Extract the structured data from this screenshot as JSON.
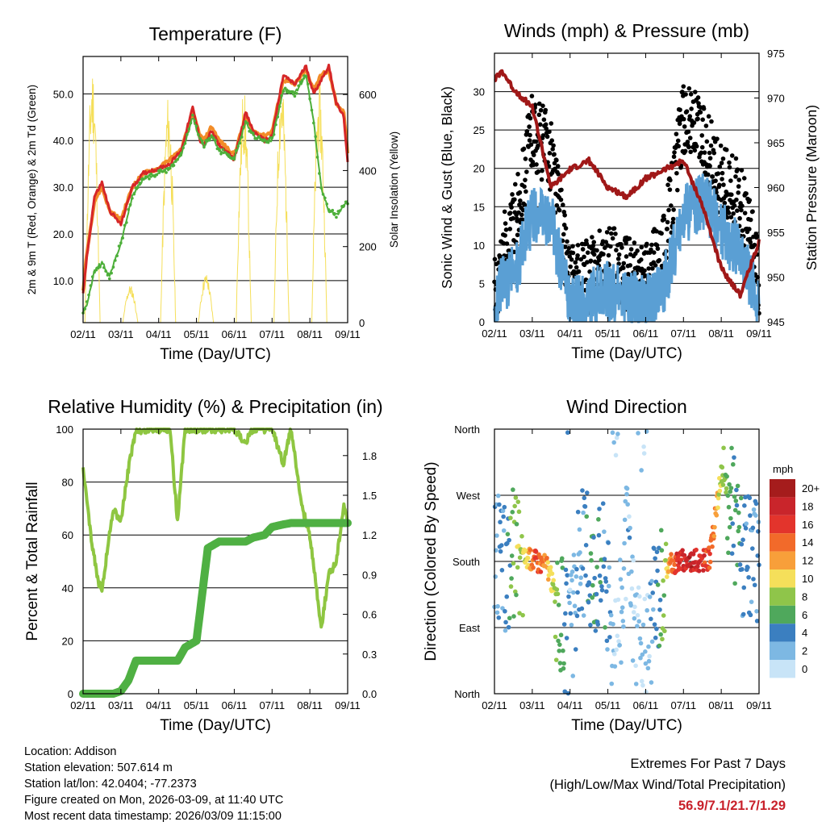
{
  "dates": [
    "02/11",
    "03/11",
    "04/11",
    "05/11",
    "06/11",
    "07/11",
    "08/11",
    "09/11"
  ],
  "xlabel": "Time (Day/UTC)",
  "colors": {
    "red": "#d62728",
    "orange": "#f28c28",
    "green": "#4daf3a",
    "yellow": "#f5df5a",
    "black": "#000000",
    "blue": "#5a9fd4",
    "maroon": "#a01818",
    "lightgreen": "#8ec641",
    "rain": "#4fb043"
  },
  "chart_data": [
    {
      "type": "line",
      "title": "Temperature (F)",
      "ylabel": "2m & 9m T (Red, Orange) & 2m Td (Green)",
      "y2label": "Solar Insolation (Yellow)",
      "ylim": [
        1,
        58
      ],
      "yticks": [
        "10.0",
        "20.0",
        "30.0",
        "40.0",
        "50.0"
      ],
      "y2lim": [
        0,
        700
      ],
      "y2ticks": [
        "0",
        "200",
        "400",
        "600"
      ],
      "x": [
        0,
        0.1,
        0.3,
        0.5,
        0.7,
        1.0,
        1.3,
        1.6,
        2.0,
        2.3,
        2.6,
        2.9,
        3.1,
        3.2,
        3.4,
        3.6,
        4.0,
        4.3,
        4.5,
        4.8,
        5.0,
        5.3,
        5.6,
        5.9,
        6.1,
        6.3,
        6.5,
        6.7,
        6.9,
        7.0
      ],
      "series": [
        {
          "name": "2m T",
          "values": [
            7,
            15,
            28,
            31,
            25,
            22,
            30,
            33,
            34,
            35,
            38,
            47,
            40,
            39,
            42,
            39,
            36,
            46,
            42,
            40,
            41,
            54,
            52,
            56,
            50,
            53,
            56,
            48,
            45,
            35
          ]
        },
        {
          "name": "9m T",
          "values": [
            8,
            16,
            27,
            30,
            25,
            23,
            30,
            33,
            34,
            36,
            38,
            46,
            41,
            40,
            43,
            40,
            37,
            45,
            42,
            41,
            42,
            53,
            52,
            55,
            51,
            54,
            55,
            48,
            46,
            37
          ]
        },
        {
          "name": "2m Td",
          "values": [
            3,
            5,
            12,
            14,
            11,
            18,
            28,
            32,
            33,
            34,
            37,
            45,
            40,
            39,
            41,
            38,
            36,
            44,
            41,
            40,
            40,
            51,
            50,
            54,
            44,
            30,
            25,
            24,
            26,
            27
          ]
        }
      ],
      "insolation": {
        "name": "Solar Insolation",
        "day_peaks": [
          680,
          100,
          600,
          130,
          620,
          650,
          640,
          180
        ]
      }
    },
    {
      "type": "scatter",
      "title": "Winds (mph) & Pressure (mb)",
      "ylabel": "Sonic Wind & Gust (Blue, Black)",
      "y2label": "Station Pressure (Maroon)",
      "ylim": [
        0,
        35
      ],
      "yticks": [
        "0",
        "5",
        "10",
        "15",
        "20",
        "25",
        "30"
      ],
      "y2lim": [
        945,
        975
      ],
      "y2ticks": [
        "945",
        "950",
        "955",
        "960",
        "965",
        "970",
        "975"
      ],
      "x": [
        0,
        0.2,
        0.5,
        1.0,
        1.5,
        2.0,
        2.5,
        3.0,
        3.5,
        4.0,
        4.5,
        5.0,
        5.5,
        6.0,
        6.5,
        7.0
      ],
      "series": [
        {
          "name": "Sonic Wind",
          "values": [
            2,
            5,
            6,
            14,
            13,
            2,
            3,
            4,
            3,
            2,
            5,
            14,
            16,
            12,
            9,
            3
          ]
        },
        {
          "name": "Gust",
          "values": [
            4,
            9,
            12,
            25,
            22,
            5,
            6,
            8,
            6,
            5,
            10,
            27,
            24,
            18,
            16,
            6
          ]
        },
        {
          "name": "Station Pressure",
          "values": [
            972,
            973,
            971,
            969,
            960,
            962,
            963,
            960,
            959,
            961,
            962,
            963,
            958,
            951,
            948,
            954
          ]
        }
      ]
    },
    {
      "type": "line",
      "title": "Relative Humidity (%) & Precipitation (in)",
      "ylabel": "Percent & Total Rainfall",
      "ylim": [
        0,
        100
      ],
      "yticks": [
        "0",
        "20",
        "40",
        "60",
        "80",
        "100"
      ],
      "y2lim": [
        0,
        2.0
      ],
      "y2ticks": [
        "0.0",
        "0.3",
        "0.6",
        "0.9",
        "1.2",
        "1.5",
        "1.8"
      ],
      "x": [
        0,
        0.2,
        0.4,
        0.5,
        0.8,
        1.0,
        1.2,
        1.4,
        1.6,
        1.8,
        2.0,
        2.3,
        2.5,
        2.7,
        3.0,
        3.3,
        3.6,
        4.0,
        4.3,
        4.5,
        4.8,
        5.0,
        5.3,
        5.5,
        5.8,
        6.0,
        6.3,
        6.5,
        6.7,
        6.9,
        7.0
      ],
      "series": [
        {
          "name": "Relative Humidity",
          "values": [
            85,
            60,
            42,
            40,
            70,
            65,
            85,
            100,
            99,
            100,
            100,
            100,
            65,
            100,
            100,
            100,
            100,
            100,
            95,
            100,
            100,
            100,
            87,
            100,
            70,
            60,
            25,
            45,
            50,
            72,
            65
          ]
        },
        {
          "name": "Total Precipitation",
          "values": [
            0,
            0,
            0,
            0,
            0,
            0.02,
            0.1,
            0.25,
            0.25,
            0.25,
            0.25,
            0.25,
            0.25,
            0.35,
            0.4,
            1.1,
            1.15,
            1.15,
            1.15,
            1.18,
            1.2,
            1.26,
            1.28,
            1.29,
            1.29,
            1.29,
            1.29,
            1.29,
            1.29,
            1.29,
            1.29
          ]
        }
      ]
    },
    {
      "type": "scatter",
      "title": "Wind Direction",
      "ylabel": "Direction (Colored By Speed)",
      "ytick_labels": [
        "North",
        "East",
        "South",
        "West",
        "North"
      ],
      "ytick_degrees": [
        0,
        90,
        180,
        270,
        360
      ],
      "x": [
        0.1,
        0.3,
        0.5,
        0.8,
        1.1,
        1.4,
        2.0,
        2.3,
        2.6,
        2.9,
        3.2,
        3.5,
        3.9,
        4.1,
        4.3,
        4.5,
        4.7,
        4.9,
        5.2,
        5.5,
        5.7,
        6.0,
        6.1,
        6.2,
        6.6,
        6.9
      ],
      "series": [
        {
          "name": "Direction (deg)",
          "values": [
            180,
            170,
            190,
            185,
            182,
            175,
            60,
            200,
            170,
            185,
            40,
            200,
            20,
            90,
            140,
            170,
            178,
            181,
            182,
            180,
            185,
            300,
            280,
            260,
            185,
            180
          ]
        },
        {
          "name": "Speed (mph)",
          "values": [
            3,
            4,
            7,
            9,
            15,
            12,
            2,
            3,
            5,
            4,
            1,
            2,
            1,
            2,
            4,
            8,
            14,
            17,
            18,
            16,
            15,
            9,
            8,
            6,
            4,
            3
          ]
        }
      ],
      "legend": {
        "title": "mph",
        "labels": [
          "20+",
          "18",
          "16",
          "14",
          "12",
          "10",
          "8",
          "6",
          "4",
          "2",
          "0"
        ],
        "colors": [
          "#a51c1c",
          "#c9252b",
          "#e3342c",
          "#f26a2a",
          "#f89f3a",
          "#f5df5a",
          "#8fc54a",
          "#4fa85c",
          "#3b7fc0",
          "#7db8e3",
          "#c8e4f7"
        ]
      }
    }
  ],
  "info": {
    "location": "Location: Addison",
    "elevation": "Station elevation: 507.614 m",
    "latlon": "Station lat/lon: 42.0404; -77.2373",
    "created": "Figure created on Mon, 2026-03-09, at 11:40 UTC",
    "recent": "Most recent data timestamp: 2026/03/09 11:15:00"
  },
  "extremes": {
    "title": "Extremes For Past 7 Days",
    "subtitle": "(High/Low/Max Wind/Total Precipitation)",
    "values": "56.9/7.1/21.7/1.29"
  }
}
